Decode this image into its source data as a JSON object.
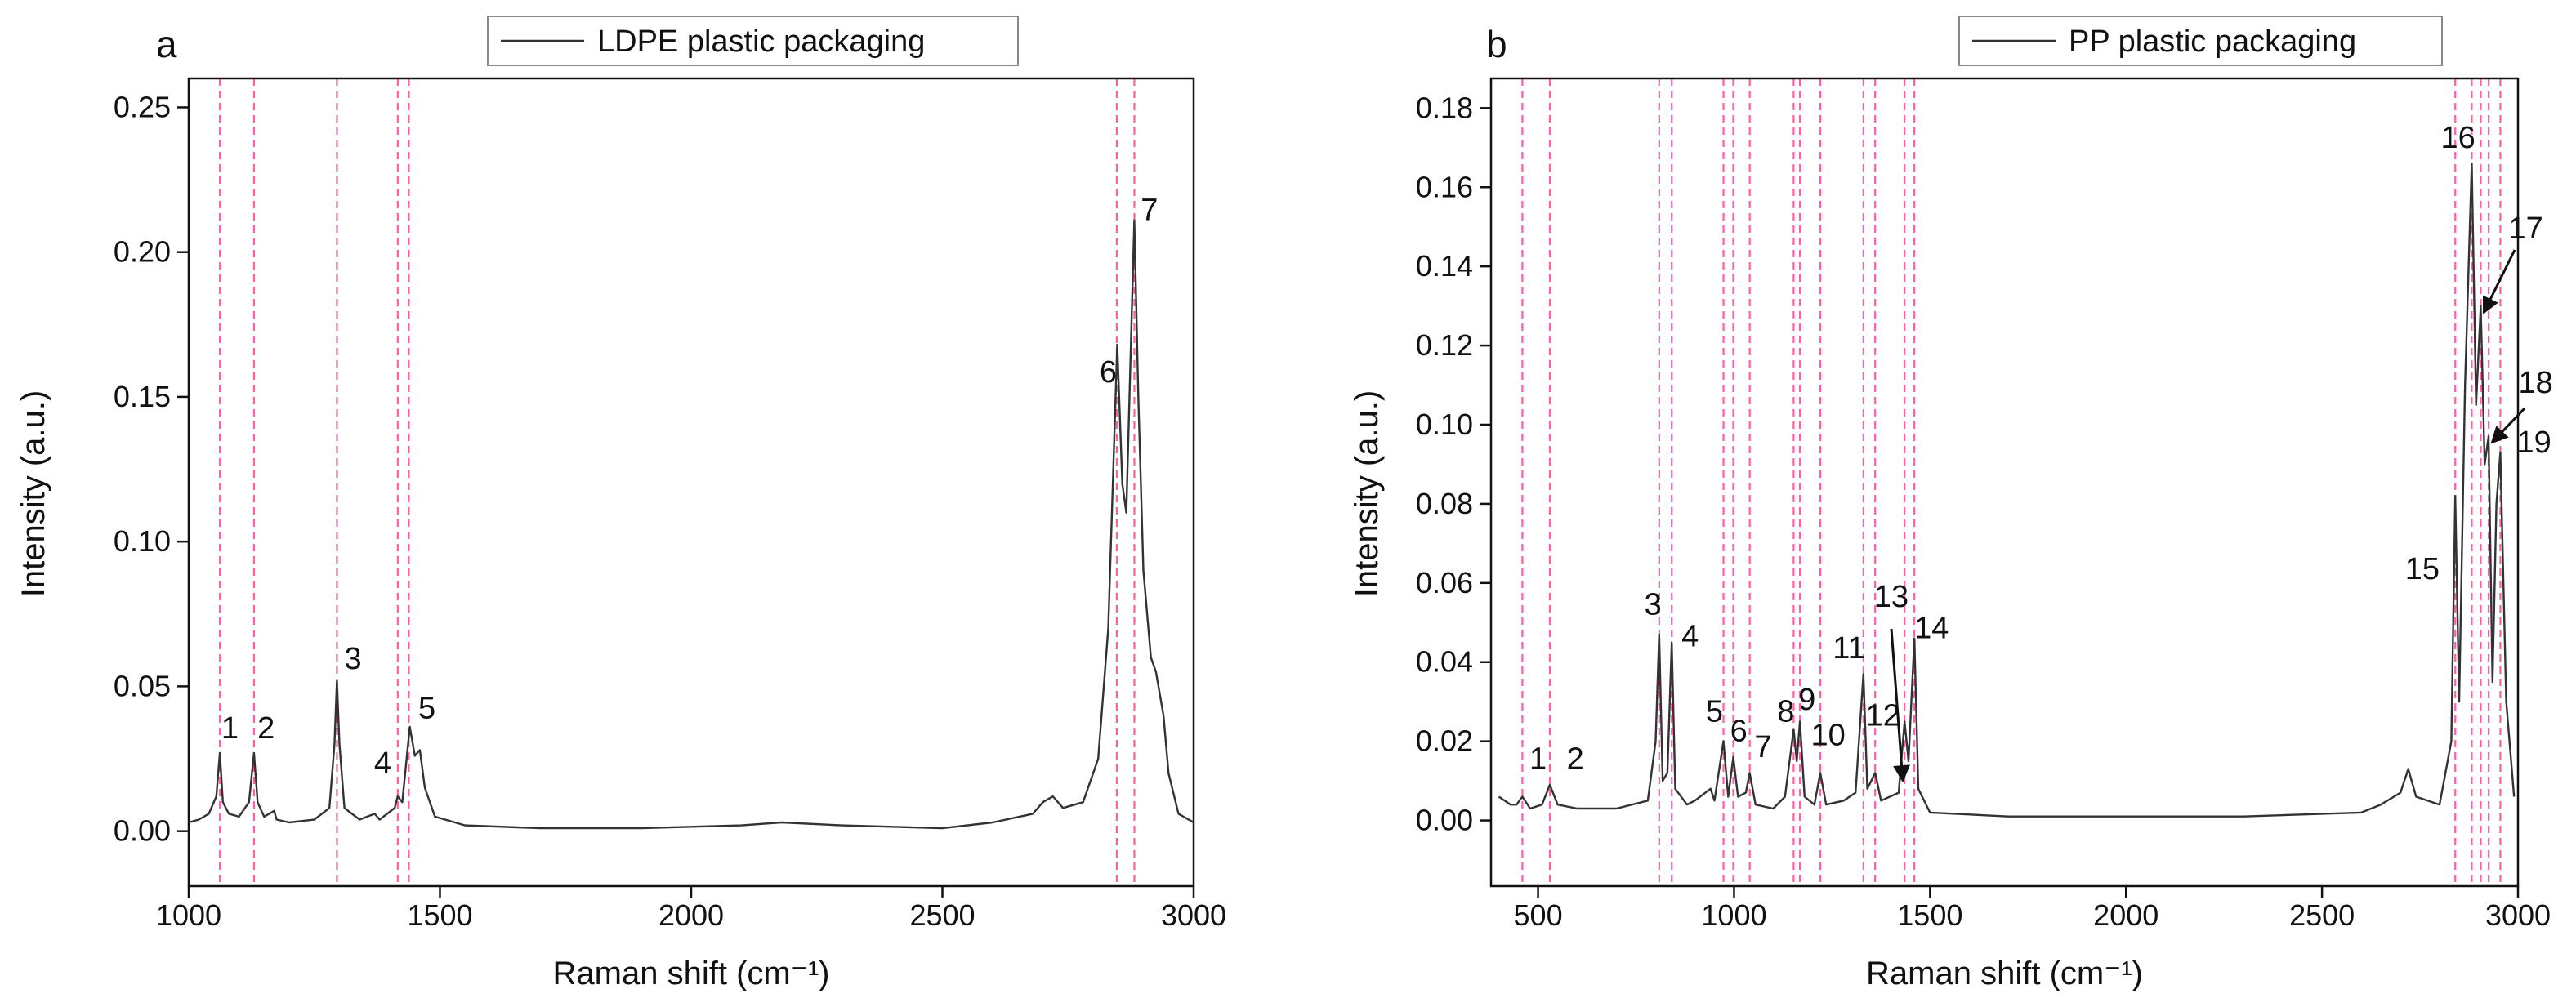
{
  "chart_data": [
    {
      "type": "line",
      "panel_label": "a",
      "x_label": "Raman shift (cm⁻¹)",
      "y_label": "Intensity (a.u.)",
      "xlim": [
        1000,
        3000
      ],
      "ylim": [
        -0.019,
        0.26
      ],
      "xticks": [
        1000,
        1500,
        2000,
        2500,
        3000
      ],
      "yticks": [
        {
          "value": 0,
          "label": "0.00"
        },
        {
          "value": 0.05,
          "label": "0.05"
        },
        {
          "value": 0.1,
          "label": "0.10"
        },
        {
          "value": 0.15,
          "label": "0.15"
        },
        {
          "value": 0.2,
          "label": "0.20"
        },
        {
          "value": 0.25,
          "label": "0.25"
        }
      ],
      "reference_lines": [
        1062,
        1130,
        1295,
        1416,
        1438,
        2847,
        2882
      ],
      "reference_color": "#ff5fa8",
      "x": [
        1000,
        1020,
        1040,
        1055,
        1062,
        1068,
        1080,
        1100,
        1120,
        1130,
        1137,
        1150,
        1170,
        1175,
        1200,
        1250,
        1280,
        1290,
        1295,
        1300,
        1310,
        1340,
        1370,
        1380,
        1410,
        1416,
        1425,
        1440,
        1450,
        1460,
        1470,
        1490,
        1550,
        1700,
        1900,
        2100,
        2180,
        2300,
        2500,
        2600,
        2680,
        2700,
        2720,
        2740,
        2780,
        2810,
        2830,
        2848,
        2858,
        2866,
        2882,
        2890,
        2900,
        2915,
        2925,
        2940,
        2950,
        2970,
        3000
      ],
      "series": [
        {
          "name": "LDPE plastic packaging",
          "color": "#333333",
          "values": [
            0.003,
            0.004,
            0.006,
            0.012,
            0.027,
            0.01,
            0.006,
            0.005,
            0.01,
            0.027,
            0.01,
            0.005,
            0.007,
            0.004,
            0.003,
            0.004,
            0.008,
            0.03,
            0.052,
            0.03,
            0.008,
            0.004,
            0.006,
            0.004,
            0.008,
            0.012,
            0.01,
            0.036,
            0.026,
            0.028,
            0.015,
            0.005,
            0.002,
            0.001,
            0.001,
            0.002,
            0.003,
            0.002,
            0.001,
            0.003,
            0.006,
            0.01,
            0.012,
            0.008,
            0.01,
            0.025,
            0.07,
            0.168,
            0.12,
            0.11,
            0.211,
            0.15,
            0.09,
            0.06,
            0.055,
            0.04,
            0.02,
            0.006,
            0.003
          ]
        }
      ],
      "annotations": [
        {
          "label": "1",
          "x": 1082,
          "y": 0.032
        },
        {
          "label": "2",
          "x": 1154,
          "y": 0.032
        },
        {
          "label": "3",
          "x": 1327,
          "y": 0.056
        },
        {
          "label": "4",
          "x": 1386,
          "y": 0.02
        },
        {
          "label": "5",
          "x": 1474,
          "y": 0.039
        },
        {
          "label": "6",
          "x": 2830,
          "y": 0.155
        },
        {
          "label": "7",
          "x": 2912,
          "y": 0.211
        }
      ]
    },
    {
      "type": "line",
      "panel_label": "b",
      "x_label": "Raman shift (cm⁻¹)",
      "y_label": "Intensity (a.u.)",
      "xlim": [
        380,
        3000
      ],
      "ylim": [
        -0.0166,
        0.1875
      ],
      "xticks": [
        500,
        1000,
        1500,
        2000,
        2500,
        3000
      ],
      "yticks": [
        {
          "value": 0,
          "label": "0.00"
        },
        {
          "value": 0.02,
          "label": "0.02"
        },
        {
          "value": 0.04,
          "label": "0.04"
        },
        {
          "value": 0.06,
          "label": "0.06"
        },
        {
          "value": 0.08,
          "label": "0.08"
        },
        {
          "value": 0.1,
          "label": "0.10"
        },
        {
          "value": 0.12,
          "label": "0.12"
        },
        {
          "value": 0.14,
          "label": "0.14"
        },
        {
          "value": 0.16,
          "label": "0.16"
        },
        {
          "value": 0.18,
          "label": "0.18"
        }
      ],
      "reference_lines": [
        460,
        530,
        809,
        841,
        973,
        998,
        1040,
        1152,
        1168,
        1220,
        1330,
        1360,
        1435,
        1460,
        2840,
        2882,
        2905,
        2925,
        2955
      ],
      "reference_color": "#ff5fa8",
      "x": [
        400,
        430,
        445,
        460,
        480,
        510,
        530,
        550,
        600,
        700,
        780,
        800,
        809,
        818,
        830,
        841,
        850,
        880,
        900,
        940,
        950,
        973,
        985,
        998,
        1010,
        1030,
        1040,
        1055,
        1100,
        1130,
        1152,
        1160,
        1168,
        1180,
        1205,
        1220,
        1235,
        1280,
        1310,
        1330,
        1340,
        1360,
        1375,
        1420,
        1435,
        1445,
        1460,
        1470,
        1500,
        1700,
        2000,
        2300,
        2600,
        2650,
        2700,
        2720,
        2740,
        2800,
        2830,
        2840,
        2850,
        2865,
        2882,
        2893,
        2905,
        2915,
        2925,
        2935,
        2945,
        2955,
        2970,
        2990
      ],
      "series": [
        {
          "name": "PP plastic packaging",
          "color": "#333333",
          "values": [
            0.006,
            0.004,
            0.004,
            0.006,
            0.003,
            0.004,
            0.009,
            0.004,
            0.003,
            0.003,
            0.005,
            0.02,
            0.047,
            0.01,
            0.012,
            0.045,
            0.008,
            0.004,
            0.005,
            0.008,
            0.005,
            0.02,
            0.006,
            0.016,
            0.006,
            0.007,
            0.012,
            0.004,
            0.003,
            0.006,
            0.023,
            0.015,
            0.025,
            0.006,
            0.004,
            0.012,
            0.004,
            0.005,
            0.007,
            0.037,
            0.008,
            0.012,
            0.005,
            0.007,
            0.025,
            0.015,
            0.046,
            0.008,
            0.002,
            0.001,
            0.001,
            0.001,
            0.002,
            0.004,
            0.007,
            0.013,
            0.006,
            0.004,
            0.02,
            0.082,
            0.03,
            0.11,
            0.166,
            0.105,
            0.13,
            0.09,
            0.097,
            0.035,
            0.08,
            0.093,
            0.03,
            0.006
          ]
        }
      ],
      "annotations": [
        {
          "label": "1",
          "x": 500,
          "y": 0.013
        },
        {
          "label": "2",
          "x": 595,
          "y": 0.013
        },
        {
          "label": "3",
          "x": 793,
          "y": 0.052
        },
        {
          "label": "4",
          "x": 888,
          "y": 0.044
        },
        {
          "label": "5",
          "x": 950,
          "y": 0.025
        },
        {
          "label": "6",
          "x": 1012,
          "y": 0.02
        },
        {
          "label": "7",
          "x": 1074,
          "y": 0.016
        },
        {
          "label": "8",
          "x": 1132,
          "y": 0.025
        },
        {
          "label": "9",
          "x": 1186,
          "y": 0.028
        },
        {
          "label": "10",
          "x": 1240,
          "y": 0.019
        },
        {
          "label": "11",
          "x": 1293,
          "y": 0.041
        },
        {
          "label": "12",
          "x": 1380,
          "y": 0.024
        },
        {
          "label": "13",
          "x": 1401,
          "y": 0.054
        },
        {
          "label": "14",
          "x": 1504,
          "y": 0.046
        },
        {
          "label": "15",
          "x": 2756,
          "y": 0.061
        },
        {
          "label": "16",
          "x": 2847,
          "y": 0.17
        },
        {
          "label": "17",
          "x": 3020,
          "y": 0.147
        },
        {
          "label": "18",
          "x": 3045,
          "y": 0.108
        },
        {
          "label": "19",
          "x": 3041,
          "y": 0.093
        }
      ]
    }
  ]
}
